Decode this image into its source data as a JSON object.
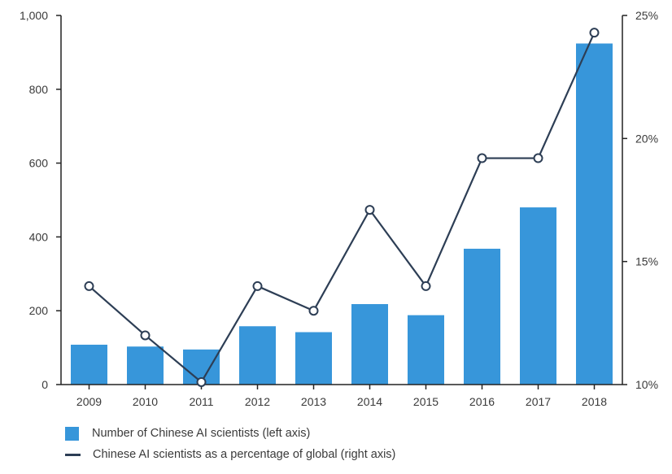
{
  "colors": {
    "bar": "#3796da",
    "line": "#2d3e55",
    "axis": "#222222",
    "text": "#3a3a3a"
  },
  "chart_data": {
    "type": "bar",
    "categories": [
      "2009",
      "2010",
      "2011",
      "2012",
      "2013",
      "2014",
      "2015",
      "2016",
      "2017",
      "2018"
    ],
    "series": [
      {
        "name": "Number of Chinese AI scientists (left axis)",
        "type": "bar",
        "axis": "left",
        "values": [
          108,
          103,
          95,
          158,
          142,
          218,
          188,
          368,
          480,
          924
        ]
      },
      {
        "name": "Chinese AI scientists as a percentage of global (right axis)",
        "type": "line",
        "axis": "right",
        "unit": "%",
        "values": [
          14.0,
          12.0,
          10.1,
          14.0,
          13.0,
          17.1,
          14.0,
          19.2,
          19.2,
          24.3
        ]
      }
    ],
    "left_axis": {
      "ylim": [
        0,
        1000
      ],
      "ticks": [
        0,
        200,
        400,
        600,
        800,
        1000
      ],
      "tick_labels": [
        "0",
        "200",
        "400",
        "600",
        "800",
        "1,000"
      ]
    },
    "right_axis": {
      "ylim": [
        10,
        25
      ],
      "ticks": [
        10,
        15,
        20,
        25
      ],
      "tick_labels": [
        "10%",
        "15%",
        "20%",
        "25%"
      ]
    },
    "title": "",
    "xlabel": "",
    "ylabel": "",
    "grid": false,
    "legend_position": "bottom-left",
    "legend": [
      "Number of Chinese AI scientists (left axis)",
      "Chinese AI scientists as a percentage of global (right axis)"
    ]
  }
}
